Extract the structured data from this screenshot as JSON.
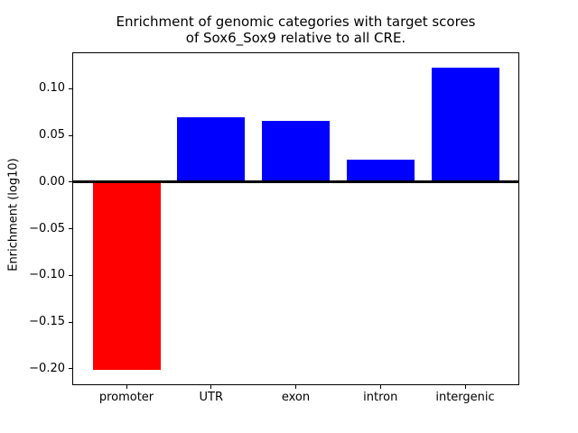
{
  "chart_data": {
    "type": "bar",
    "title": "Enrichment of genomic categories with target scores of Sox6_Sox9 relative to all CRE.",
    "title_lines": [
      "Enrichment of genomic categories with target scores",
      "of Sox6_Sox9 relative to all CRE."
    ],
    "xlabel": "",
    "ylabel": "Enrichment (log10)",
    "categories": [
      "promoter",
      "UTR",
      "exon",
      "intron",
      "intergenic"
    ],
    "values": [
      -0.201,
      0.069,
      0.066,
      0.024,
      0.123
    ],
    "bar_colors": [
      "#ff0000",
      "#0000ff",
      "#0000ff",
      "#0000ff",
      "#0000ff"
    ],
    "negative_color": "#ff0000",
    "positive_color": "#0000ff",
    "ylim": [
      -0.2174,
      0.139
    ],
    "xlim": [
      -0.64,
      4.64
    ],
    "bar_width_fraction": 0.8,
    "yticks": [
      0.1,
      0.05,
      0.0,
      -0.05,
      -0.1,
      -0.15,
      -0.2
    ],
    "ytick_labels": [
      "0.10",
      "0.05",
      "0.00",
      "−0.05",
      "−0.10",
      "−0.15",
      "−0.20"
    ],
    "zero_line": {
      "value": 0,
      "color": "#000000",
      "thickness_px": 3
    },
    "grid": false,
    "legend": false,
    "spine_color": "#000000",
    "background_color": "#ffffff"
  }
}
